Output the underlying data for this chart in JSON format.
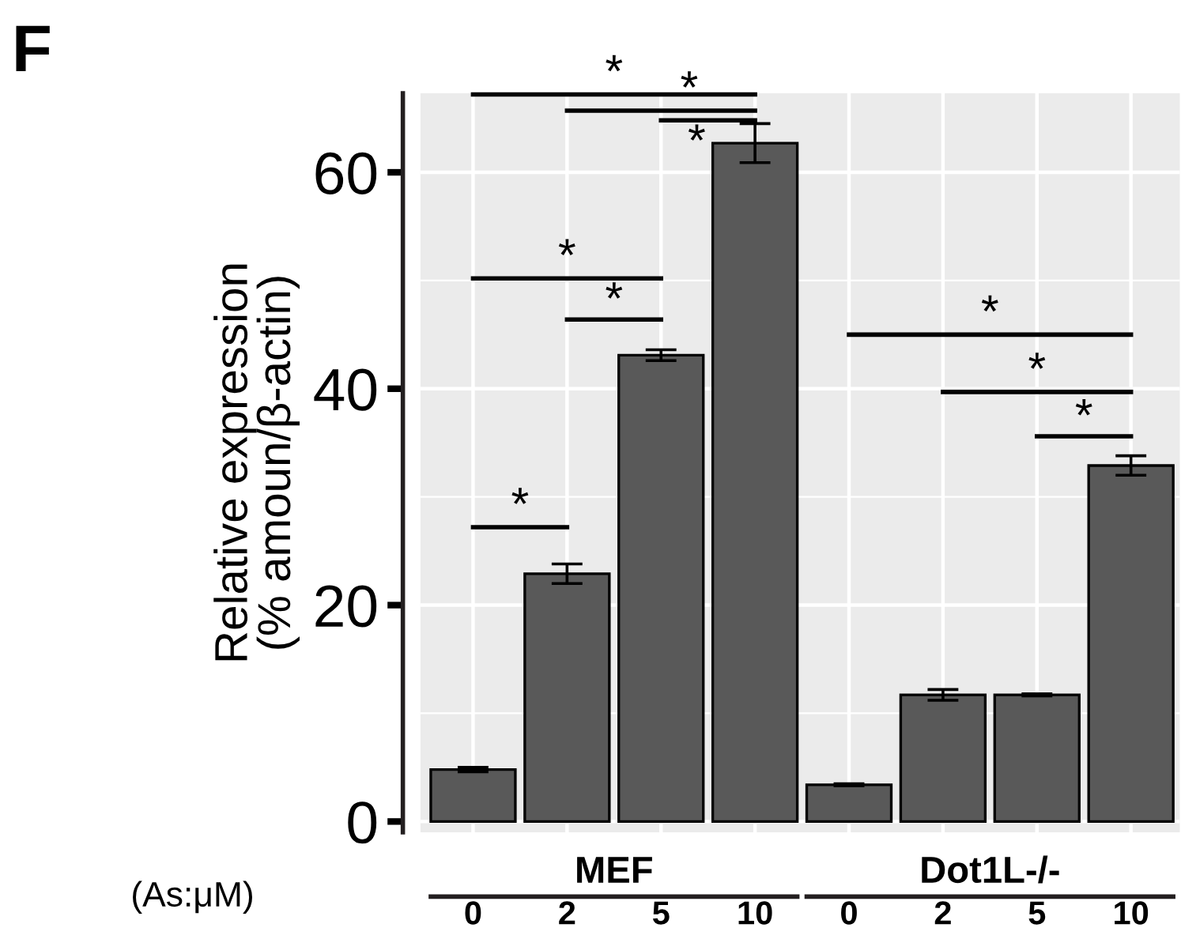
{
  "chart_data": {
    "type": "bar",
    "title": "F",
    "ylabel": "Relative expression\n(% amoun/β-actin)",
    "categories": [
      "0",
      "2",
      "5",
      "10",
      "0",
      "2",
      "5",
      "10"
    ],
    "values": [
      4.8,
      22.9,
      43.1,
      62.7,
      3.4,
      11.7,
      11.7,
      32.9
    ],
    "errors": [
      0.2,
      0.9,
      0.5,
      1.8,
      0.1,
      0.5,
      0.1,
      0.9
    ],
    "color": "#595959",
    "ylim": [
      -1.0,
      67.3
    ],
    "yticks": [
      0,
      20,
      40,
      60
    ],
    "grid": true,
    "annotations": [
      "MEF",
      "Dot1L-/-",
      "(As:μM)",
      "*",
      "*",
      "*",
      "*",
      "*",
      "*",
      "*",
      "*",
      "*"
    ]
  }
}
